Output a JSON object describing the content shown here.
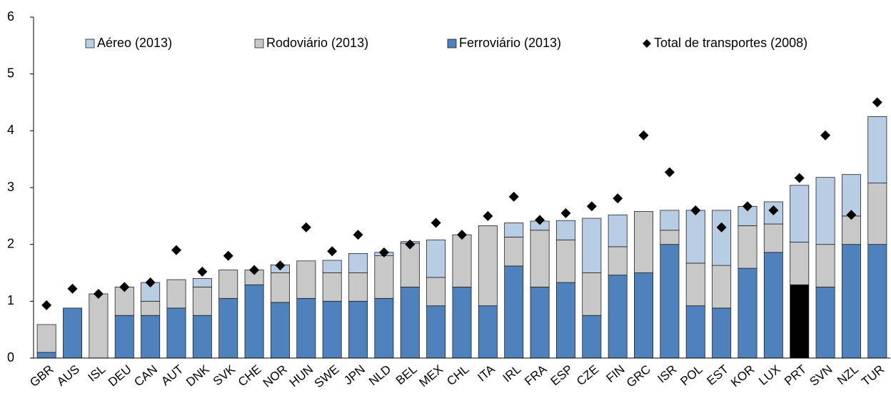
{
  "chart_data": {
    "type": "stacked_bar",
    "categories": [
      "GBR",
      "AUS",
      "ISL",
      "DEU",
      "CAN",
      "AUT",
      "DNK",
      "SVK",
      "CHE",
      "NOR",
      "HUN",
      "SWE",
      "JPN",
      "NLD",
      "BEL",
      "MEX",
      "CHL",
      "ITA",
      "IRL",
      "FRA",
      "ESP",
      "CZE",
      "FIN",
      "GRC",
      "ISR",
      "POL",
      "EST",
      "KOR",
      "LUX",
      "PRT",
      "SVN",
      "NZL",
      "TUR"
    ],
    "series": [
      {
        "name": "Ferroviário (2013)",
        "color": "#4f81bd",
        "values": [
          0.1,
          0.88,
          0,
          0.75,
          0.75,
          0.88,
          0.75,
          1.05,
          1.29,
          0.98,
          1.05,
          1.0,
          1.0,
          1.05,
          1.25,
          0.92,
          1.25,
          0.92,
          1.62,
          1.25,
          1.33,
          0.75,
          1.46,
          1.5,
          2.0,
          0.92,
          0.88,
          1.58,
          1.86,
          1.29,
          1.25,
          2.0,
          2.0
        ]
      },
      {
        "name": "Rodoviário (2013)",
        "color": "#c8c8c8",
        "values": [
          0.49,
          0,
          1.13,
          0.5,
          0.25,
          0.5,
          0.5,
          0.5,
          0.26,
          0.52,
          0.66,
          0.5,
          0.5,
          0.75,
          0.77,
          0.5,
          0.92,
          1.41,
          0.51,
          1.0,
          0.75,
          0.75,
          0.5,
          1.08,
          0.25,
          0.75,
          0.75,
          0.75,
          0.5,
          0.75,
          0.75,
          0.5,
          1.08
        ]
      },
      {
        "name": "Aéreo (2013)",
        "color": "#b8cce4",
        "values": [
          0,
          0,
          0,
          0,
          0.33,
          0,
          0.15,
          0,
          0,
          0.14,
          0,
          0.22,
          0.34,
          0.06,
          0.03,
          0.66,
          0,
          0,
          0.25,
          0.16,
          0.34,
          0.96,
          0.56,
          0,
          0.35,
          0.93,
          0.97,
          0.34,
          0.39,
          1.0,
          1.18,
          0.73,
          1.17
        ]
      },
      {
        "name": "Total de transportes (2008)",
        "type": "scatter",
        "color": "#000000",
        "values": [
          0.93,
          1.22,
          1.13,
          1.25,
          1.33,
          1.9,
          1.52,
          1.8,
          1.55,
          1.63,
          2.3,
          1.88,
          2.17,
          1.86,
          2.0,
          2.38,
          2.17,
          2.5,
          2.84,
          2.43,
          2.55,
          2.67,
          2.81,
          3.92,
          3.27,
          2.6,
          2.3,
          2.67,
          2.6,
          3.17,
          3.92,
          2.52,
          4.5
        ]
      }
    ],
    "highlight": {
      "category": "PRT",
      "color": "#000000"
    },
    "ylim": [
      0,
      6
    ],
    "yticks": [
      0,
      1,
      2,
      3,
      4,
      5,
      6
    ],
    "grid": false
  }
}
